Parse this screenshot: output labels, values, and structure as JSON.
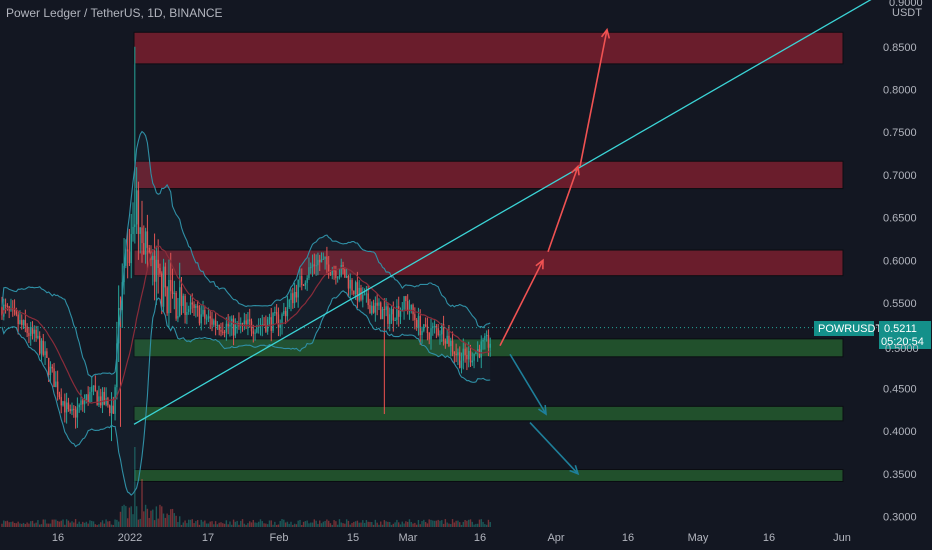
{
  "header": {
    "title": "Power Ledger / TetherUS, 1D, BINANCE"
  },
  "price_axis": {
    "currency": "USDT",
    "top_partial_label": "0.9000"
  },
  "current_price": {
    "symbol": "POWRUSDT",
    "value": "0.5211",
    "countdown": "05:20:54",
    "covered_label": "0.5000"
  },
  "colors": {
    "background": "#131722",
    "up_candle": "#26a69a",
    "down_candle": "#ef5350",
    "bands": "#2f8fa5",
    "ma": "#8a2c3a",
    "trendline": "#3bd4d6",
    "resistance_zone": "#7a1f2e",
    "support_zone": "#245a2e",
    "arrow_up": "#f05252",
    "arrow_down": "#1e7f9a",
    "price_tag": "#14908a"
  },
  "chart_data": {
    "type": "candlestick",
    "title": "Power Ledger / TetherUS, 1D, BINANCE",
    "y_ticks": [
      "0.8500",
      "0.8000",
      "0.7500",
      "0.7000",
      "0.6500",
      "0.6000",
      "0.5500",
      "0.4500",
      "0.4000",
      "0.3500",
      "0.3000"
    ],
    "x_ticks": [
      "16",
      "2022",
      "17",
      "Feb",
      "15",
      "Mar",
      "16",
      "Apr",
      "16",
      "May",
      "16",
      "Jun"
    ],
    "ylim": [
      0.294,
      0.903
    ],
    "grid": false,
    "last_price": 0.5211,
    "resistance_zones": [
      [
        0.83,
        0.867
      ],
      [
        0.684,
        0.716
      ],
      [
        0.582,
        0.612
      ]
    ],
    "support_zones": [
      [
        0.487,
        0.508
      ],
      [
        0.412,
        0.429
      ],
      [
        0.341,
        0.355
      ]
    ],
    "projection_arrows_up": [
      [
        0.5,
        0.6
      ],
      [
        0.61,
        0.71
      ],
      [
        0.71,
        0.87
      ]
    ],
    "projection_arrows_down": [
      [
        0.49,
        0.42
      ],
      [
        0.41,
        0.35
      ]
    ]
  }
}
